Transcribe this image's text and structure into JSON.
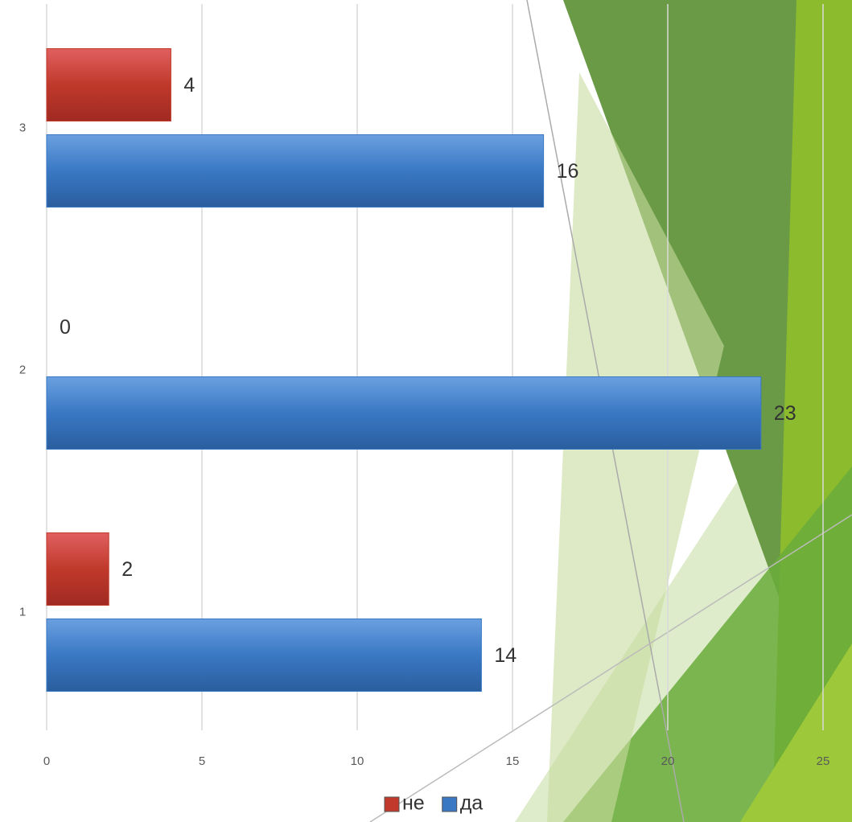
{
  "chart_data": {
    "type": "hbar",
    "categories": [
      "1",
      "2",
      "3"
    ],
    "series": [
      {
        "name": "не",
        "color": "#c0392b",
        "values": [
          2,
          0,
          4
        ]
      },
      {
        "name": "да",
        "color": "#3a78c4",
        "values": [
          14,
          23,
          16
        ]
      }
    ],
    "xlim": [
      0,
      25
    ],
    "xticks": [
      0,
      5,
      10,
      15,
      20,
      25
    ],
    "grid": true,
    "legend": "bottom"
  }
}
